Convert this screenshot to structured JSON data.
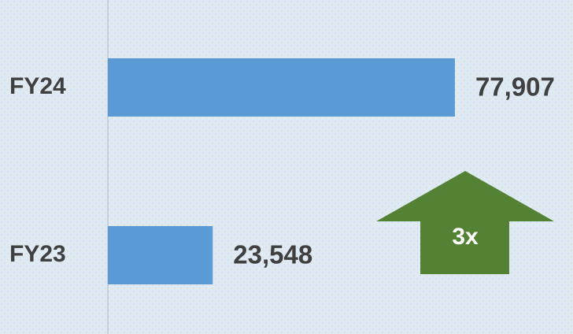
{
  "chart_data": {
    "type": "bar",
    "orientation": "horizontal",
    "categories": [
      "FY24",
      "FY23"
    ],
    "values": [
      77907,
      23548
    ],
    "value_labels": [
      "77,907",
      "23,548"
    ],
    "color": "#5b9bd5",
    "xlim": [
      0,
      100000
    ],
    "annotation": {
      "text": "3x",
      "color": "#548235"
    }
  }
}
